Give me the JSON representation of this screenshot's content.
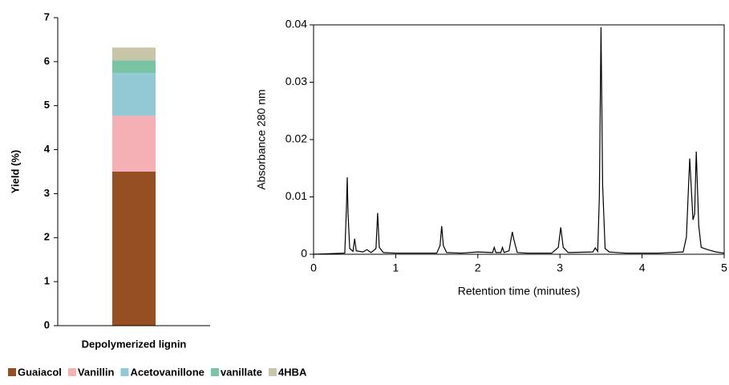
{
  "chart_data": [
    {
      "type": "stacked-bar",
      "y_label": "Yield (%)",
      "categories": [
        "Depolymerized lignin"
      ],
      "ylim": [
        0,
        7
      ],
      "yticks": [
        0,
        1,
        2,
        3,
        4,
        5,
        6,
        7
      ],
      "legend": "bottom",
      "series": [
        {
          "name": "Guaiacol",
          "color": "#954f22",
          "values": [
            3.5
          ]
        },
        {
          "name": "Vanillin",
          "color": "#f4b0b4",
          "values": [
            1.27
          ]
        },
        {
          "name": "Acetovanillone",
          "color": "#92c9d4",
          "values": [
            0.97
          ]
        },
        {
          "name": "vanillate",
          "color": "#78c4a4",
          "values": [
            0.29
          ]
        },
        {
          "name": "4HBA",
          "color": "#c9c5a8",
          "values": [
            0.29
          ]
        }
      ]
    },
    {
      "type": "line",
      "x_label": "Retention time (minutes)",
      "y_label": "Absorbance 280 nm",
      "xlim": [
        0,
        5
      ],
      "xticks": [
        0,
        1,
        2,
        3,
        4,
        5
      ],
      "ylim": [
        0,
        0.04
      ],
      "yticks": [
        0,
        0.01,
        0.02,
        0.03,
        0.04
      ],
      "color": "#000000",
      "x": [
        0,
        0.38,
        0.4,
        0.41,
        0.42,
        0.44,
        0.48,
        0.5,
        0.52,
        0.6,
        0.65,
        0.7,
        0.76,
        0.78,
        0.8,
        0.85,
        1.0,
        1.2,
        1.5,
        1.54,
        1.56,
        1.58,
        1.62,
        1.8,
        2.0,
        2.18,
        2.2,
        2.22,
        2.28,
        2.3,
        2.32,
        2.38,
        2.42,
        2.44,
        2.48,
        2.6,
        2.9,
        2.98,
        3.01,
        3.04,
        3.1,
        3.4,
        3.43,
        3.46,
        3.48,
        3.5,
        3.52,
        3.55,
        3.6,
        3.8,
        4.2,
        4.5,
        4.54,
        4.58,
        4.62,
        4.64,
        4.66,
        4.69,
        4.72,
        4.8,
        4.9,
        5.0
      ],
      "values": [
        0,
        0.0002,
        0.008,
        0.0134,
        0.007,
        0.001,
        0.0005,
        0.0027,
        0.0006,
        0.0004,
        0.0008,
        0.0003,
        0.001,
        0.0072,
        0.0012,
        0.0003,
        0.0002,
        0.0002,
        0.0002,
        0.0015,
        0.0049,
        0.0015,
        0.0003,
        0.0002,
        0.0004,
        0.0003,
        0.0012,
        0.0003,
        0.0003,
        0.0012,
        0.0003,
        0.0006,
        0.0039,
        0.0025,
        0.0003,
        0.0002,
        0.0002,
        0.0012,
        0.0047,
        0.0012,
        0.0003,
        0.0004,
        0.0011,
        0.0005,
        0.01,
        0.0396,
        0.012,
        0.001,
        0.0004,
        0.0002,
        0.0002,
        0.0004,
        0.003,
        0.0167,
        0.006,
        0.007,
        0.0179,
        0.005,
        0.0012,
        0.0008,
        0.0004,
        0.0002
      ]
    }
  ]
}
